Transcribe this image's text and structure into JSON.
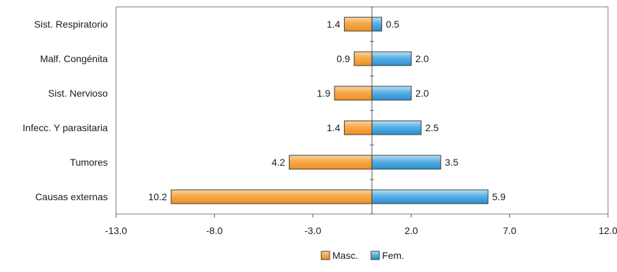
{
  "chart_data": {
    "type": "bar",
    "orientation": "horizontal",
    "categories": [
      "Sist. Respiratorio",
      "Malf. Congénita",
      "Sist. Nervioso",
      "Infecc. Y parasitaria",
      "Tumores",
      "Causas externas"
    ],
    "series": [
      {
        "name": "Masc.",
        "values": [
          -1.4,
          -0.9,
          -1.9,
          -1.4,
          -4.2,
          -10.2
        ],
        "labels": [
          "1.4",
          "0.9",
          "1.9",
          "1.4",
          "4.2",
          "10.2"
        ],
        "color": "#f5a445"
      },
      {
        "name": "Fem.",
        "values": [
          0.5,
          2.0,
          2.0,
          2.5,
          3.5,
          5.9
        ],
        "labels": [
          "0.5",
          "2.0",
          "2.0",
          "2.5",
          "3.5",
          "5.9"
        ],
        "color": "#4da6e0"
      }
    ],
    "xlim": [
      -13.0,
      12.0
    ],
    "xticks": [
      -13.0,
      -8.0,
      -3.0,
      2.0,
      7.0,
      12.0
    ],
    "xtick_labels": [
      "-13.0",
      "-8.0",
      "-3.0",
      "2.0",
      "7.0",
      "12.0"
    ],
    "title": "",
    "xlabel": "",
    "ylabel": "",
    "grid": false,
    "legend": "bottom-center"
  }
}
